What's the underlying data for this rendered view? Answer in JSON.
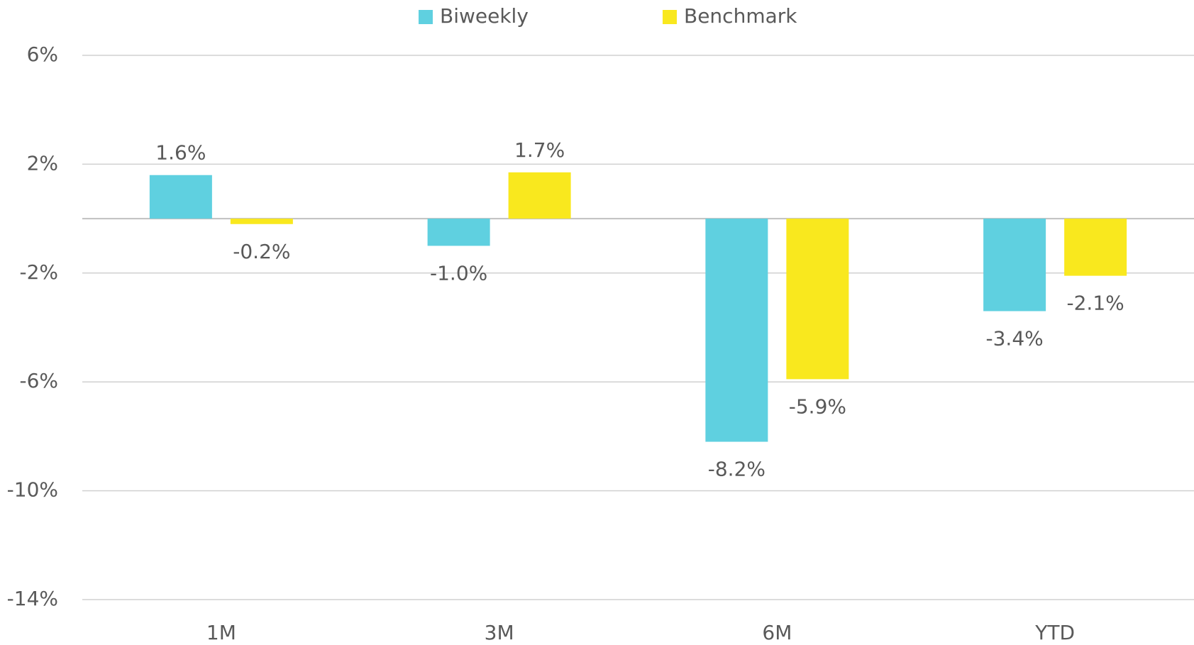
{
  "chart_data": {
    "type": "bar",
    "categories": [
      "1M",
      "3M",
      "6M",
      "YTD"
    ],
    "series": [
      {
        "name": "Biweekly",
        "color": "#5fd0e0",
        "values": [
          1.6,
          -1.0,
          -8.2,
          -3.4
        ],
        "value_labels": [
          "1.6%",
          "-1.0%",
          "-8.2%",
          "-3.4%"
        ]
      },
      {
        "name": "Benchmark",
        "color": "#f9e81e",
        "values": [
          -0.2,
          1.7,
          -5.9,
          -2.1
        ],
        "value_labels": [
          "-0.2%",
          "1.7%",
          "-5.9%",
          "-2.1%"
        ]
      }
    ],
    "ylim": [
      -14,
      6
    ],
    "yticks": [
      {
        "value": 6,
        "label": "6%"
      },
      {
        "value": 2,
        "label": "2%"
      },
      {
        "value": -2,
        "label": "-2%"
      },
      {
        "value": -6,
        "label": "-6%"
      },
      {
        "value": -10,
        "label": "-10%"
      },
      {
        "value": -14,
        "label": "-14%"
      }
    ],
    "grid": true,
    "legend": "top"
  }
}
